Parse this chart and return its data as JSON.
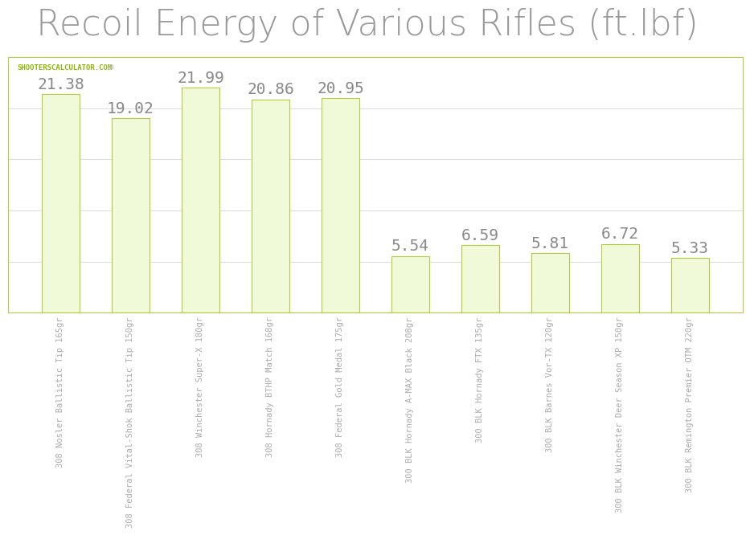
{
  "title": "Recoil Energy of Various Rifles (ft.lbf)",
  "title_color": "#999999",
  "title_fontsize": 32,
  "watermark": "SHOOTERSCALCULATOR.COM",
  "watermark_fontsize": 6.5,
  "watermark_color": "#8ab800",
  "crosshair_color": "#bbbbbb",
  "categories": [
    "308 Nosler Ballistic Tip 165gr",
    "308 Federal Vital-Shok Ballistic Tip 150gr",
    "308 Winchester Super-X 180gr",
    "308 Hornady BTHP Match 168gr",
    "308 Federal Gold Medal 175gr",
    "300 BLK Hornady A-MAX Black 208gr",
    "300 BLK Hornady FTX 135gr",
    "300 BLK Barnes Vor-TX 120gr",
    "300 BLK Winchester Deer Season XP 150gr",
    "300 BLK Remington Premier OTM 220gr"
  ],
  "values": [
    21.38,
    19.02,
    21.99,
    20.86,
    20.95,
    5.54,
    6.59,
    5.81,
    6.72,
    5.33
  ],
  "bar_color": "#f0fad8",
  "bar_edge_color": "#b5cc3a",
  "bar_width": 0.55,
  "label_color": "#888888",
  "label_fontsize": 14,
  "tick_label_color": "#aaaaaa",
  "tick_label_fontsize": 7.5,
  "grid_color": "#dddddd",
  "background_color": "#ffffff",
  "plot_bg_color": "#ffffff",
  "frame_color": "#b5cc3a",
  "ylim": [
    0,
    25
  ],
  "yticks": [
    0,
    5,
    10,
    15,
    20,
    25
  ]
}
